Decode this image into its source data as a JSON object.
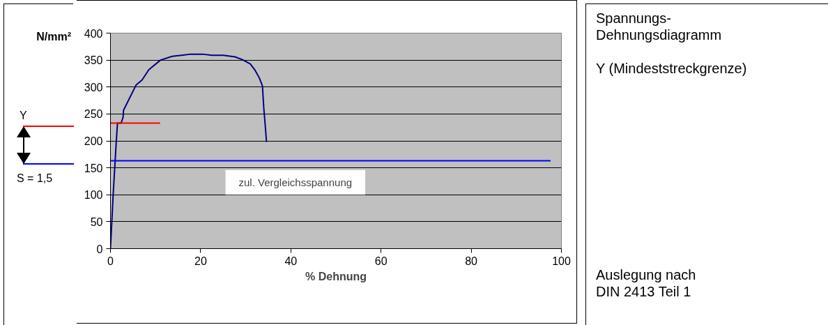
{
  "chart_data": {
    "type": "line",
    "xlabel": "% Dehnung",
    "ylabel": "N/mm²",
    "xlim": [
      0,
      100
    ],
    "ylim": [
      0,
      400
    ],
    "xticks": [
      0,
      20,
      40,
      60,
      80,
      100
    ],
    "yticks": [
      0,
      50,
      100,
      150,
      200,
      250,
      300,
      350,
      400
    ],
    "grid": "y",
    "series": [
      {
        "color": "#000080",
        "x": [
          0,
          0.6,
          1.24,
          1.55,
          2.37,
          2.8,
          2.9,
          5.7,
          7.0,
          8.5,
          11.1,
          13.7,
          15.8,
          17.8,
          20.4,
          22.5,
          25.0,
          27.6,
          29.2,
          31.0,
          32.0,
          33.0,
          33.7,
          34.0,
          34.3,
          34.6
        ],
        "values": [
          0,
          100,
          192,
          233,
          233,
          244,
          257,
          304,
          313,
          332,
          350,
          357,
          359,
          361,
          361,
          359,
          359,
          356,
          351,
          343,
          332,
          317,
          302,
          261,
          231,
          198
        ]
      },
      {
        "color": "#ff0000",
        "x": [
          0,
          11
        ],
        "values": [
          233,
          233
        ]
      },
      {
        "color": "#0000ff",
        "x": [
          0,
          97.6
        ],
        "values": [
          163,
          163
        ]
      }
    ],
    "annotations": [
      "Y",
      "S = 1,5",
      "Spannungs-\nDehnungsdiagramm",
      "Y (Mindeststreckgrenze)",
      "Auslegung nach\nDIN 2413 Teil 1",
      "zul. Vergleichsspannung"
    ]
  }
}
